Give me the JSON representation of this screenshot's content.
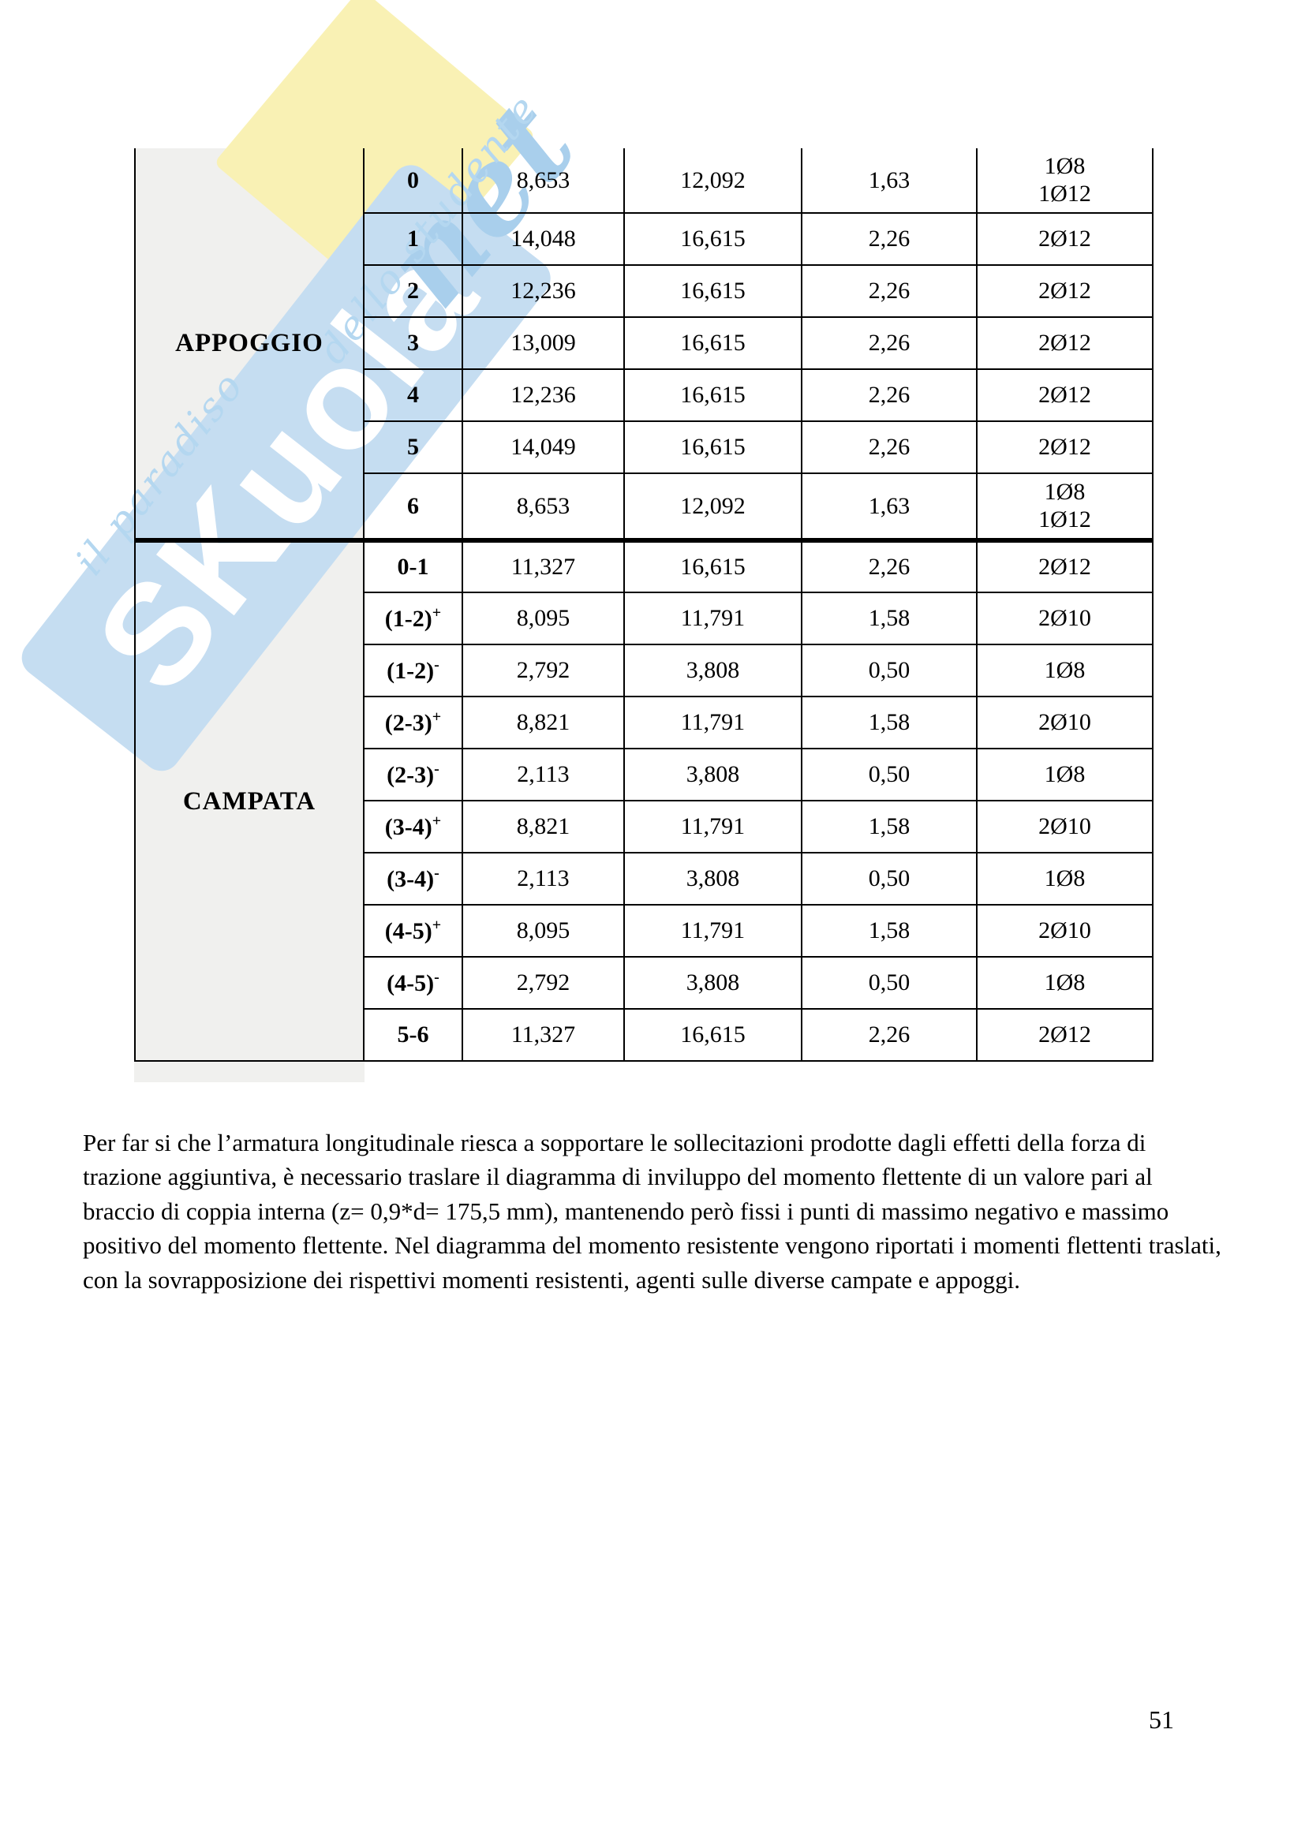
{
  "watermark": {
    "brand_main": "SKuola",
    "brand_net": "net",
    "tagline_part1": "il paradiso",
    "tagline_part2": "dello studente",
    "band_color": "#c5ddf1",
    "letters_color": "#ffffff",
    "script_color": "#b4d7f0",
    "diamond_color": "#f9f1b4"
  },
  "table": {
    "sections": [
      {
        "label": "APPOGGIO",
        "rows": [
          {
            "key": "0",
            "key_sup": "",
            "v1": "8,653",
            "v2": "12,092",
            "v3": "1,63",
            "v4": [
              "1Ø8",
              "1Ø12"
            ]
          },
          {
            "key": "1",
            "key_sup": "",
            "v1": "14,048",
            "v2": "16,615",
            "v3": "2,26",
            "v4": [
              "2Ø12"
            ]
          },
          {
            "key": "2",
            "key_sup": "",
            "v1": "12,236",
            "v2": "16,615",
            "v3": "2,26",
            "v4": [
              "2Ø12"
            ]
          },
          {
            "key": "3",
            "key_sup": "",
            "v1": "13,009",
            "v2": "16,615",
            "v3": "2,26",
            "v4": [
              "2Ø12"
            ]
          },
          {
            "key": "4",
            "key_sup": "",
            "v1": "12,236",
            "v2": "16,615",
            "v3": "2,26",
            "v4": [
              "2Ø12"
            ]
          },
          {
            "key": "5",
            "key_sup": "",
            "v1": "14,049",
            "v2": "16,615",
            "v3": "2,26",
            "v4": [
              "2Ø12"
            ]
          },
          {
            "key": "6",
            "key_sup": "",
            "v1": "8,653",
            "v2": "12,092",
            "v3": "1,63",
            "v4": [
              "1Ø8",
              "1Ø12"
            ]
          }
        ]
      },
      {
        "label": "CAMPATA",
        "rows": [
          {
            "key": "0-1",
            "key_sup": "",
            "v1": "11,327",
            "v2": "16,615",
            "v3": "2,26",
            "v4": [
              "2Ø12"
            ]
          },
          {
            "key": "(1-2)",
            "key_sup": "+",
            "v1": "8,095",
            "v2": "11,791",
            "v3": "1,58",
            "v4": [
              "2Ø10"
            ]
          },
          {
            "key": "(1-2)",
            "key_sup": "-",
            "v1": "2,792",
            "v2": "3,808",
            "v3": "0,50",
            "v4": [
              "1Ø8"
            ]
          },
          {
            "key": "(2-3)",
            "key_sup": "+",
            "v1": "8,821",
            "v2": "11,791",
            "v3": "1,58",
            "v4": [
              "2Ø10"
            ]
          },
          {
            "key": "(2-3)",
            "key_sup": "-",
            "v1": "2,113",
            "v2": "3,808",
            "v3": "0,50",
            "v4": [
              "1Ø8"
            ]
          },
          {
            "key": "(3-4)",
            "key_sup": "+",
            "v1": "8,821",
            "v2": "11,791",
            "v3": "1,58",
            "v4": [
              "2Ø10"
            ]
          },
          {
            "key": "(3-4)",
            "key_sup": "-",
            "v1": "2,113",
            "v2": "3,808",
            "v3": "0,50",
            "v4": [
              "1Ø8"
            ]
          },
          {
            "key": "(4-5)",
            "key_sup": "+",
            "v1": "8,095",
            "v2": "11,791",
            "v3": "1,58",
            "v4": [
              "2Ø10"
            ]
          },
          {
            "key": "(4-5)",
            "key_sup": "-",
            "v1": "2,792",
            "v2": "3,808",
            "v3": "0,50",
            "v4": [
              "1Ø8"
            ]
          },
          {
            "key": "5-6",
            "key_sup": "",
            "v1": "11,327",
            "v2": "16,615",
            "v3": "2,26",
            "v4": [
              "2Ø12"
            ]
          }
        ]
      }
    ]
  },
  "paragraph": "Per far si che l’armatura longitudinale riesca a sopportare le sollecitazioni prodotte dagli effetti della forza di trazione aggiuntiva, è necessario traslare il diagramma di inviluppo del momento flettente di un valore pari al braccio di coppia interna (z= 0,9*d= 175,5 mm), mantenendo però fissi i punti di massimo negativo e massimo positivo del momento flettente. Nel diagramma del momento resistente vengono riportati i momenti flettenti traslati, con la sovrapposizione dei rispettivi momenti resistenti, agenti sulle diverse campate e appoggi.",
  "page": {
    "number": "51"
  }
}
